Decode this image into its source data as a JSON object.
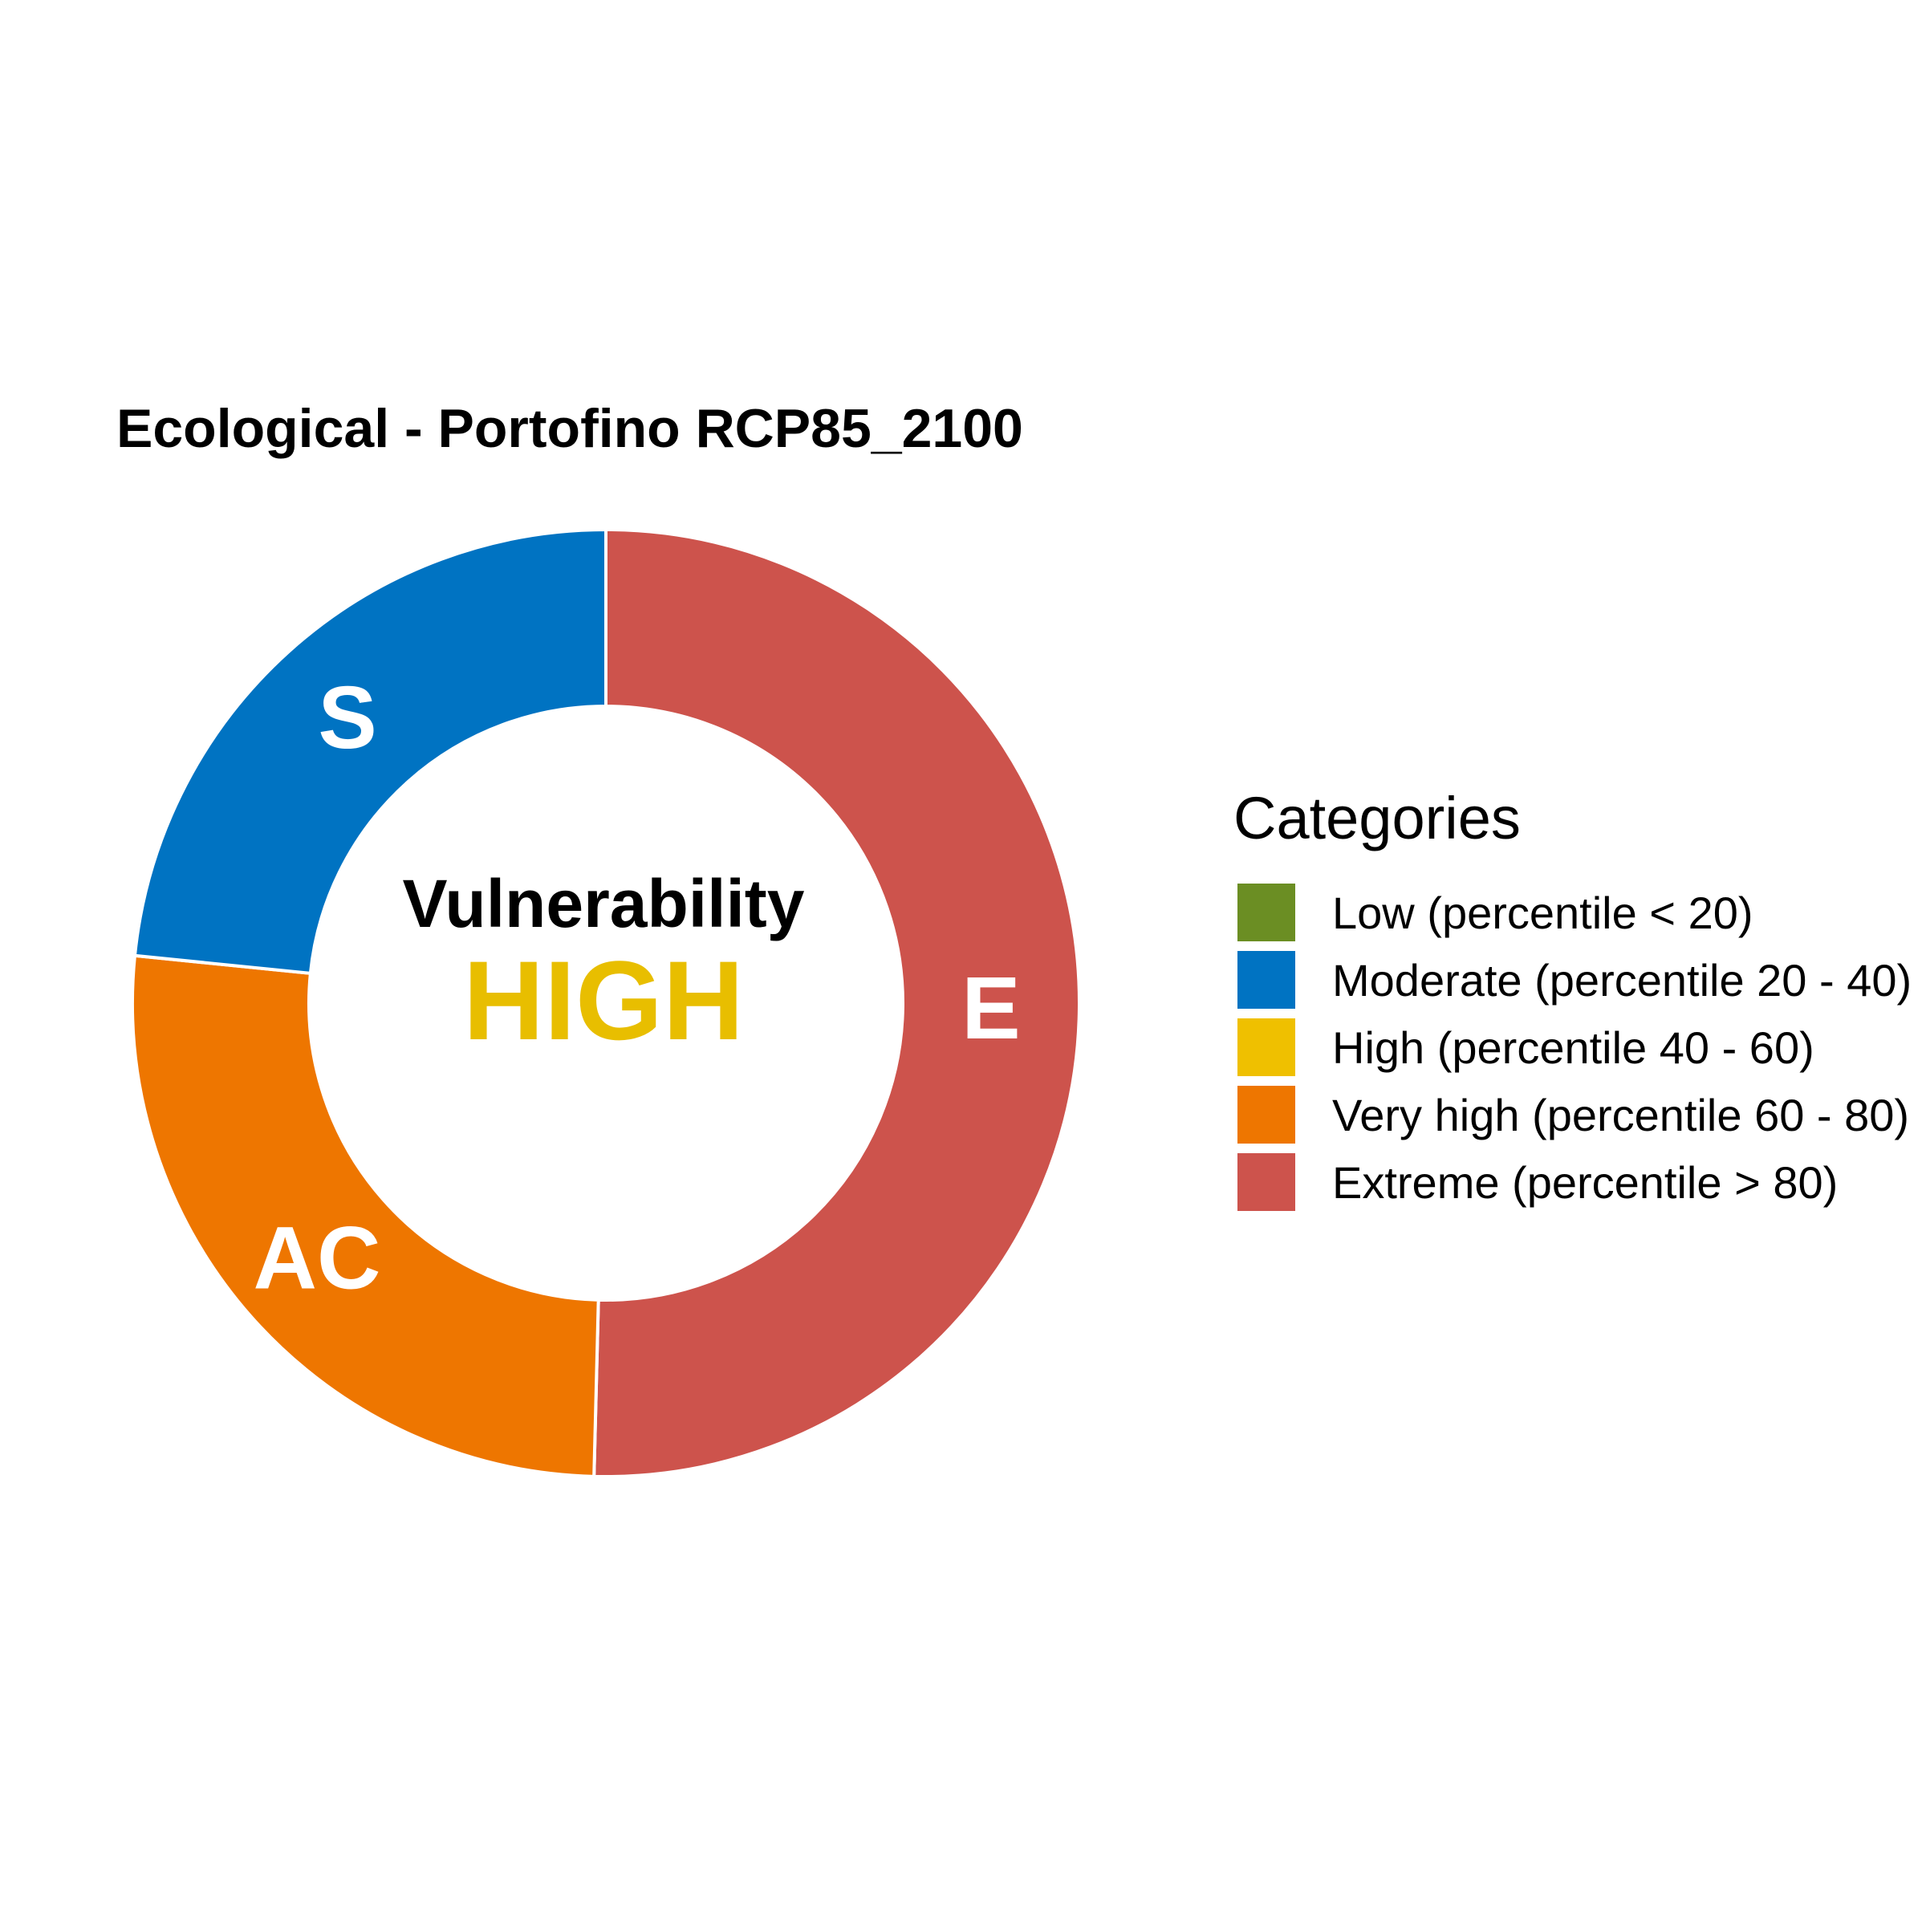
{
  "chart_data": {
    "type": "pie",
    "title": "Ecological - Portofino RCP85_2100",
    "center": {
      "title": "Vulnerability",
      "value": "HIGH",
      "value_color": "#E8BE00"
    },
    "slices": [
      {
        "label": "E",
        "share": 0.504,
        "category": "Extreme (percentile > 80)",
        "color": "#CD534C"
      },
      {
        "label": "AC",
        "share": 0.262,
        "category": "Very high (percentile 60 - 80)",
        "color": "#EE7600"
      },
      {
        "label": "S",
        "share": 0.234,
        "category": "Moderate (percentile 20 - 40)",
        "color": "#0073C2"
      }
    ],
    "legend": {
      "title": "Categories",
      "position": "right",
      "items": [
        {
          "label": "Low (percentile < 20)",
          "color": "#6B8E23"
        },
        {
          "label": "Moderate (percentile 20 - 40)",
          "color": "#0073C2"
        },
        {
          "label": "High (percentile 40 - 60)",
          "color": "#EFC000"
        },
        {
          "label": "Very high (percentile 60 - 80)",
          "color": "#EE7600"
        },
        {
          "label": "Extreme (percentile > 80)",
          "color": "#CD534C"
        }
      ]
    }
  }
}
